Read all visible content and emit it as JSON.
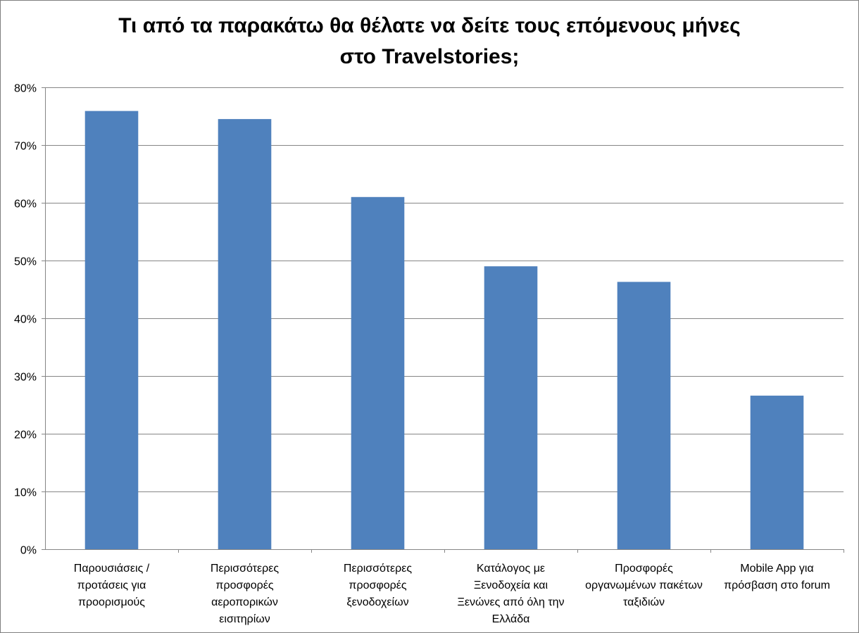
{
  "title_lines": [
    "Τι από τα παρακάτω θα θέλατε να δείτε τους επόμενους μήνες",
    "στο Travelstories;"
  ],
  "chart_data": {
    "type": "bar",
    "title": "Τι από τα παρακάτω θα θέλατε να δείτε τους επόμενους μήνες στο Travelstories;",
    "xlabel": "",
    "ylabel": "",
    "categories": [
      [
        "Παρουσιάσεις /",
        "προτάσεις για",
        "προορισμούς"
      ],
      [
        "Περισσότερες",
        "προσφορές",
        "αεροπορικών",
        "εισιτηρίων"
      ],
      [
        "Περισσότερες",
        "προσφορές",
        "ξενοδοχείων"
      ],
      [
        "Κατάλογος με",
        "Ξενοδοχεία και",
        "Ξενώνες από όλη την",
        "Ελλάδα"
      ],
      [
        "Προσφορές",
        "οργανωμένων πακέτων",
        "ταξιδιών"
      ],
      [
        "Mobile App για",
        "πρόσβαση στο forum"
      ]
    ],
    "values": [
      0.759,
      0.745,
      0.61,
      0.49,
      0.463,
      0.266
    ],
    "ylim": [
      0,
      0.8
    ],
    "yticks": [
      0,
      0.1,
      0.2,
      0.3,
      0.4,
      0.5,
      0.6,
      0.7,
      0.8
    ],
    "ytick_labels": [
      "0%",
      "10%",
      "20%",
      "30%",
      "40%",
      "50%",
      "60%",
      "70%",
      "80%"
    ],
    "grid": true,
    "legend": "none",
    "bar_color": "#4f81bd",
    "grid_color": "#868686"
  }
}
